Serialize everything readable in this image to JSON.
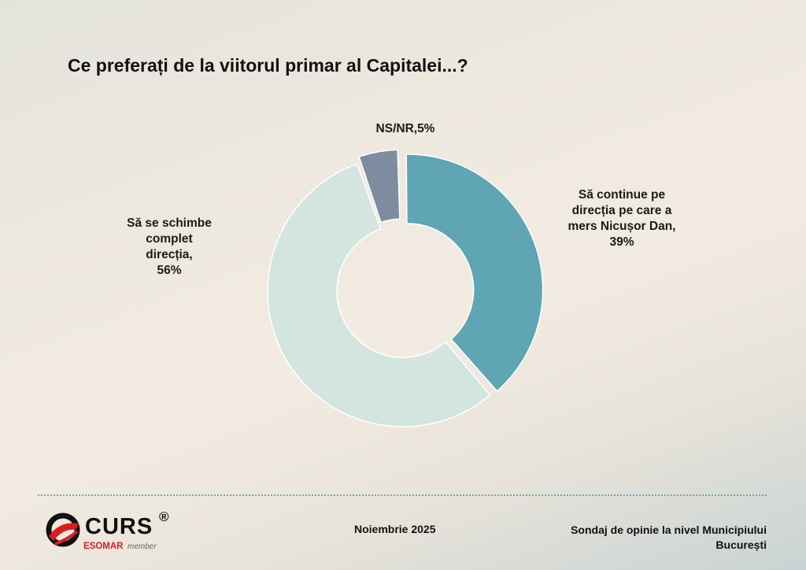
{
  "title": "Ce preferați de la viitorul primar al Capitalei...?",
  "chart_data": {
    "type": "pie",
    "donut": true,
    "slices": [
      {
        "label_lines": [
          "NS/NR,5%"
        ],
        "value": 5,
        "color": "#7f8ca0"
      },
      {
        "label_lines": [
          "Să continue pe",
          "direcția pe care a",
          "mers Nicușor Dan,",
          "39%"
        ],
        "value": 39,
        "color": "#5fa5b3"
      },
      {
        "label_lines": [
          "Să se schimbe",
          "complet",
          "direcția,",
          "56%"
        ],
        "value": 56,
        "color": "#d4e5df"
      }
    ]
  },
  "footer": {
    "date": "Noiembrie 2025",
    "survey_line1": "Sondaj de opinie la nivel Municipiului",
    "survey_line2": "București"
  },
  "logo": {
    "name": "CURS",
    "reg": "®",
    "esomar": "ESOMAR",
    "member": "member"
  }
}
